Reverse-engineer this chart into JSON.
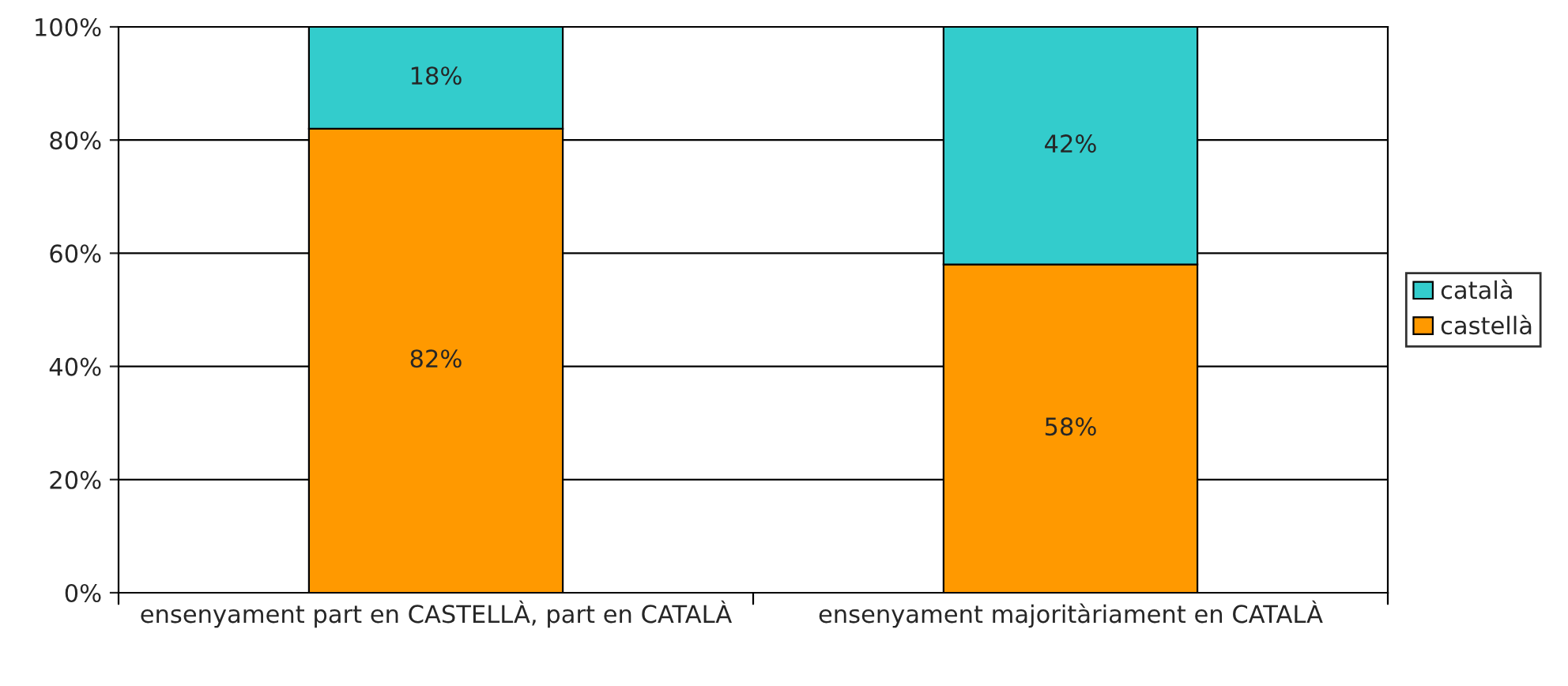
{
  "chart_data": {
    "type": "bar",
    "stacked": true,
    "categories": [
      "ensenyament part en CASTELLÀ, part en CATALÀ",
      "ensenyament majoritàriament en CATALÀ"
    ],
    "series": [
      {
        "name": "castellà",
        "color": "#ff9900",
        "values": [
          82,
          58
        ],
        "value_labels": [
          "82%",
          "58%"
        ]
      },
      {
        "name": "català",
        "color": "#33cccc",
        "values": [
          18,
          42
        ],
        "value_labels": [
          "18%",
          "42%"
        ]
      }
    ],
    "ylim": [
      0,
      100
    ],
    "yticks": [
      {
        "value": 0,
        "label": "0%"
      },
      {
        "value": 20,
        "label": "20%"
      },
      {
        "value": 40,
        "label": "40%"
      },
      {
        "value": 60,
        "label": "60%"
      },
      {
        "value": 80,
        "label": "80%"
      },
      {
        "value": 100,
        "label": "100%"
      }
    ],
    "grid": "y",
    "legend": "right"
  }
}
